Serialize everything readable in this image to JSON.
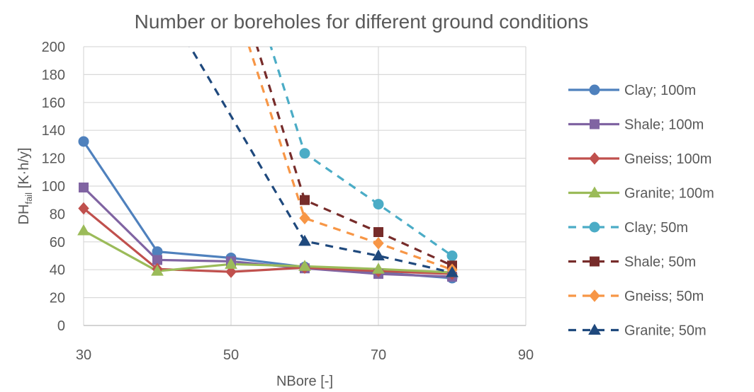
{
  "chart_data": {
    "type": "line",
    "title": "Number or boreholes for different ground conditions",
    "xlabel": "NBore [-]",
    "ylabel": {
      "main": "DH",
      "sub": "fail",
      "rest": " [K·h/y]"
    },
    "xlim": [
      30,
      90
    ],
    "ylim": [
      0,
      200
    ],
    "xticks": [
      30,
      50,
      70,
      90
    ],
    "yticks": [
      0,
      20,
      40,
      60,
      80,
      100,
      120,
      140,
      160,
      180,
      200
    ],
    "grid": true,
    "legend_position": "right",
    "series": [
      {
        "name": "Clay;  100m",
        "color": "#4F81BD",
        "marker": "circle",
        "dash": false,
        "points": [
          [
            30,
            132
          ],
          [
            40,
            53
          ],
          [
            50,
            48.5
          ],
          [
            60,
            42
          ],
          [
            70,
            38
          ],
          [
            80,
            34
          ]
        ]
      },
      {
        "name": "Shale;  100m",
        "color": "#8064A2",
        "marker": "square",
        "dash": false,
        "points": [
          [
            30,
            99
          ],
          [
            40,
            47
          ],
          [
            50,
            46
          ],
          [
            60,
            41
          ],
          [
            70,
            37
          ],
          [
            80,
            35
          ]
        ]
      },
      {
        "name": "Gneiss;  100m",
        "color": "#C0504D",
        "marker": "diamond",
        "dash": false,
        "points": [
          [
            30,
            84
          ],
          [
            40,
            40.5
          ],
          [
            50,
            38.5
          ],
          [
            60,
            41.5
          ],
          [
            70,
            39
          ],
          [
            80,
            37
          ]
        ]
      },
      {
        "name": "Granite;  100m",
        "color": "#9BBB59",
        "marker": "triangle",
        "dash": false,
        "points": [
          [
            30,
            68
          ],
          [
            40,
            39
          ],
          [
            50,
            44
          ],
          [
            60,
            42.5
          ],
          [
            70,
            40.5
          ],
          [
            80,
            38
          ]
        ]
      },
      {
        "name": "Clay;  50m",
        "color": "#4BACC6",
        "marker": "circle",
        "dash": true,
        "points": [
          [
            50,
            290
          ],
          [
            60,
            123.5
          ],
          [
            70,
            87
          ],
          [
            80,
            50
          ]
        ]
      },
      {
        "name": "Shale;  50m",
        "color": "#772C2A",
        "marker": "square",
        "dash": true,
        "points": [
          [
            50,
            260
          ],
          [
            60,
            90
          ],
          [
            70,
            67
          ],
          [
            80,
            43
          ]
        ]
      },
      {
        "name": "Gneiss;  50m",
        "color": "#F79646",
        "marker": "diamond",
        "dash": true,
        "points": [
          [
            50,
            240
          ],
          [
            60,
            77
          ],
          [
            70,
            59
          ],
          [
            80,
            40
          ]
        ]
      },
      {
        "name": "Granite;  50m",
        "color": "#1F497D",
        "marker": "triangle",
        "dash": true,
        "points": [
          [
            40,
            240
          ],
          [
            60,
            60.5
          ],
          [
            70,
            50
          ],
          [
            80,
            38
          ]
        ]
      }
    ]
  }
}
